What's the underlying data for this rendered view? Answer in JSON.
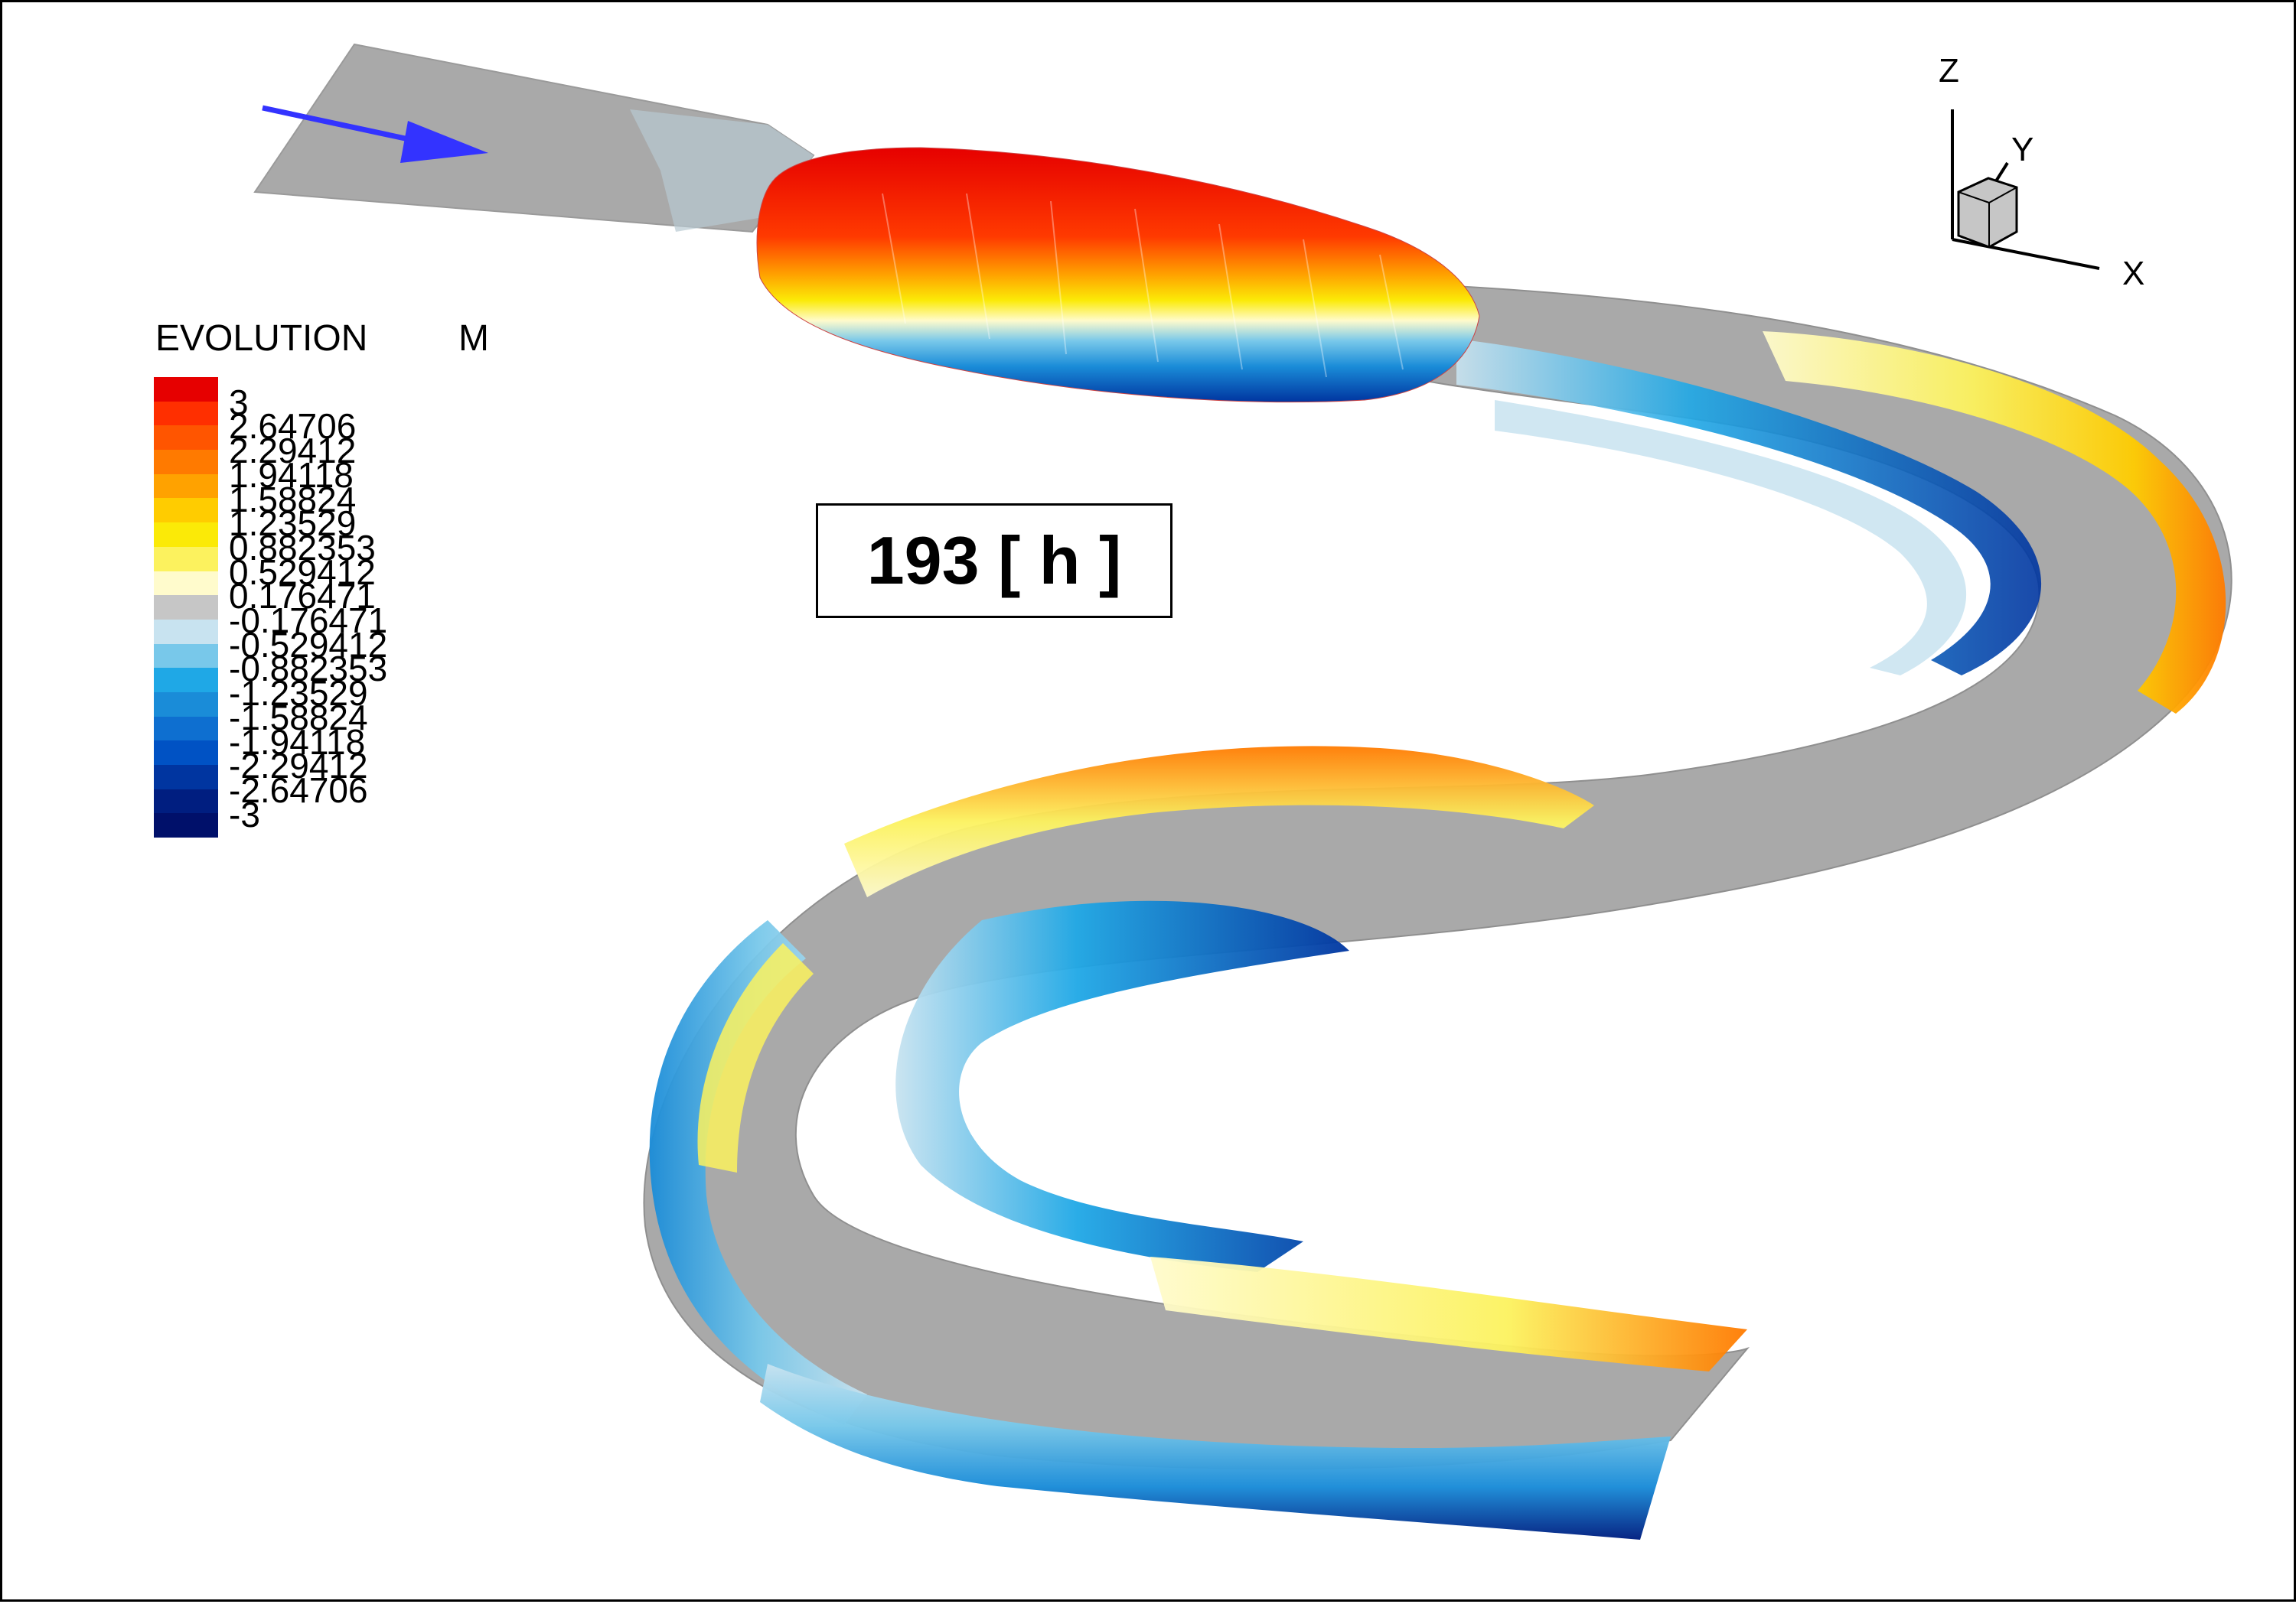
{
  "figure": {
    "time_label": "193 [ h ]",
    "flow_arrow_icon": "flow-direction-arrow-icon",
    "axis_labels": {
      "x": "X",
      "y": "Y",
      "z": "Z"
    }
  },
  "legend": {
    "title": "EVOLUTION",
    "unit": "M",
    "levels": [
      "3",
      "2.64706",
      "2.29412",
      "1.94118",
      "1.58824",
      "1.23529",
      "0.882353",
      "0.529412",
      "0.176471",
      "-0.176471",
      "-0.529412",
      "-0.882353",
      "-1.23529",
      "-1.58824",
      "-1.94118",
      "-2.29412",
      "-2.64706",
      "-3"
    ],
    "colors": [
      "#e60000",
      "#ff2f00",
      "#ff5500",
      "#ff7a00",
      "#ffa200",
      "#ffcc00",
      "#fbea07",
      "#fcf25e",
      "#fffbcc",
      "#c6c6c6",
      "#c8e3f0",
      "#78c8ea",
      "#1fa8e6",
      "#1a8cd8",
      "#0e6fd0",
      "#0052c4",
      "#0035a0",
      "#001e80",
      "#00106a"
    ]
  },
  "colors": {
    "bed": "#a9a9a9",
    "arrow": "#3333ff",
    "frame": "#000000"
  }
}
